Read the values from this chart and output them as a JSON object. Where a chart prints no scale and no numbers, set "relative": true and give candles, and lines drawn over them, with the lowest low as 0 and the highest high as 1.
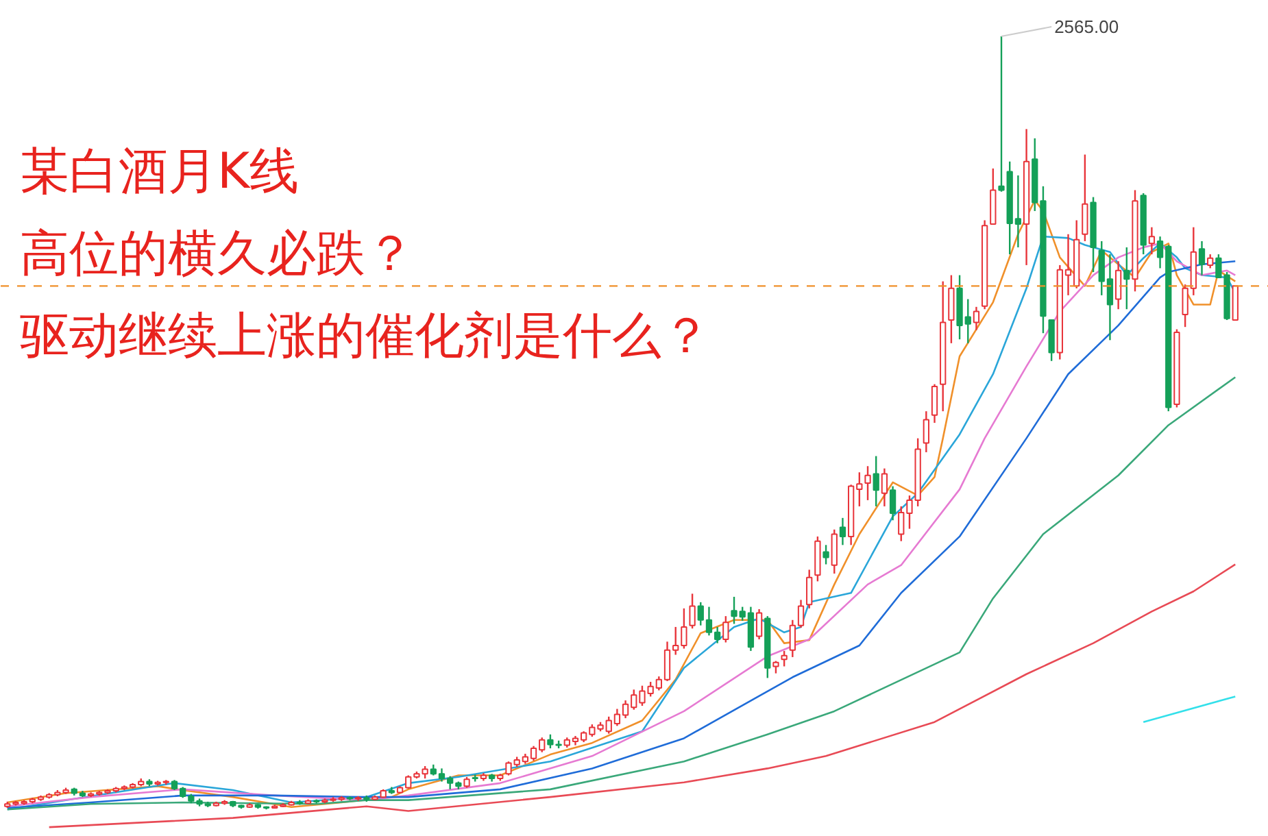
{
  "chart_data": {
    "type": "candlestick",
    "title": "某白酒月K线",
    "subtitle": "高位的横久必跌？驱动继续上涨的催化剂是什么？",
    "relative": true,
    "tick_labels": false,
    "grid": false,
    "colors": [
      "#e8343a",
      "#e8343a",
      "#e8343a",
      "#e8343a",
      "#e8343a",
      "#e8343a",
      "#e8343a",
      "#e8343a",
      "#14a058",
      "#14a058",
      "#e8343a",
      "#e8343a",
      "#e8343a",
      "#e8343a",
      "#e8343a",
      "#e8343a",
      "#e8343a",
      "#14a058",
      "#e8343a",
      "#e8343a",
      "#14a058",
      "#14a058",
      "#14a058",
      "#14a058",
      "#14a058",
      "#e8343a",
      "#e8343a",
      "#14a058",
      "#14a058",
      "#e8343a",
      "#14a058",
      "#14a058",
      "#e8343a",
      "#e8343a",
      "#e8343a",
      "#14a058",
      "#e8343a",
      "#14a058",
      "#e8343a",
      "#e8343a",
      "#e8343a",
      "#14a058",
      "#e8343a",
      "#14a058",
      "#e8343a",
      "#e8343a",
      "#14a058",
      "#e8343a",
      "#e8343a",
      "#e8343a",
      "#e8343a",
      "#14a058",
      "#14a058",
      "#14a058",
      "#14a058",
      "#e8343a",
      "#14a058",
      "#e8343a",
      "#14a058",
      "#e8343a",
      "#e8343a",
      "#e8343a",
      "#e8343a",
      "#e8343a",
      "#e8343a",
      "#14a058",
      "#14a058",
      "#e8343a",
      "#e8343a",
      "#e8343a",
      "#e8343a",
      "#e8343a",
      "#e8343a",
      "#e8343a",
      "#e8343a",
      "#e8343a",
      "#e8343a",
      "#e8343a",
      "#e8343a",
      "#e8343a",
      "#e8343a",
      "#e8343a",
      "#e8343a",
      "#14a058",
      "#14a058",
      "#14a058",
      "#e8343a",
      "#14a058",
      "#14a058",
      "#14a058",
      "#e8343a",
      "#14a058",
      "#e8343a",
      "#e8343a",
      "#e8343a",
      "#e8343a",
      "#e8343a",
      "#e8343a",
      "#14a058",
      "#e8343a",
      "#14a058",
      "#e8343a",
      "#e8343a",
      "#e8343a",
      "#14a058",
      "#e8343a",
      "#14a058",
      "#e8343a",
      "#e8343a",
      "#e8343a",
      "#e8343a",
      "#e8343a",
      "#e8343a",
      "#e8343a",
      "#14a058",
      "#14a058",
      "#e8343a",
      "#e8343a",
      "#e8343a",
      "#14a058",
      "#14a058",
      "#14a058",
      "#e8343a",
      "#14a058",
      "#14a058",
      "#14a058",
      "#e8343a",
      "#e8343a",
      "#e8343a",
      "#e8343a",
      "#14a058",
      "#14a058",
      "#14a058",
      "#e8343a",
      "#14a058",
      "#e8343a",
      "#14a058",
      "#e8343a",
      "#14a058",
      "#14a058",
      "#e8343a",
      "#e8343a",
      "#e8343a",
      "#14a058",
      "#e8343a",
      "#14a058",
      "#14a058",
      "#e8343a"
    ],
    "categories": [
      null,
      null,
      null,
      null,
      null,
      null,
      null,
      null,
      null,
      null,
      null,
      null,
      null,
      null,
      null,
      null,
      null,
      null,
      null,
      null,
      null,
      null,
      null,
      null,
      null,
      null,
      null,
      null,
      null,
      null,
      null,
      null,
      null,
      null,
      null,
      null,
      null,
      null,
      null,
      null,
      null,
      null,
      null,
      null,
      null,
      null,
      null,
      null,
      null,
      null,
      null,
      null,
      null,
      null,
      null,
      null,
      null,
      null,
      null,
      null,
      null,
      null,
      null,
      null,
      null,
      null,
      null,
      null,
      null,
      null,
      null,
      null,
      null,
      null,
      null,
      null,
      null,
      null,
      null,
      null,
      null,
      null,
      null,
      null,
      null,
      null,
      null,
      null,
      null,
      null,
      null,
      null,
      null,
      null,
      null,
      null,
      null,
      null,
      null,
      null,
      null,
      null,
      null,
      null,
      null,
      null,
      null,
      null,
      null,
      null,
      null,
      null,
      null,
      null,
      null,
      null,
      null,
      null,
      null,
      null,
      null,
      null,
      null,
      null,
      null,
      null,
      null,
      null,
      null,
      null,
      null,
      null,
      null,
      null,
      null,
      null,
      null,
      null,
      null,
      null,
      null,
      null,
      null,
      null,
      null,
      null,
      null,
      null
    ],
    "ohlc": [
      [
        0.004,
        0.01,
        0.002,
        0.007
      ],
      [
        0.007,
        0.011,
        0.005,
        0.009
      ],
      [
        0.008,
        0.012,
        0.006,
        0.01
      ],
      [
        0.01,
        0.015,
        0.008,
        0.013
      ],
      [
        0.013,
        0.018,
        0.011,
        0.016
      ],
      [
        0.016,
        0.021,
        0.014,
        0.019
      ],
      [
        0.019,
        0.025,
        0.017,
        0.022
      ],
      [
        0.022,
        0.028,
        0.02,
        0.025
      ],
      [
        0.026,
        0.028,
        0.018,
        0.021
      ],
      [
        0.021,
        0.024,
        0.016,
        0.018
      ],
      [
        0.018,
        0.022,
        0.016,
        0.02
      ],
      [
        0.02,
        0.024,
        0.018,
        0.022
      ],
      [
        0.022,
        0.026,
        0.02,
        0.024
      ],
      [
        0.024,
        0.029,
        0.022,
        0.027
      ],
      [
        0.027,
        0.031,
        0.025,
        0.029
      ],
      [
        0.029,
        0.034,
        0.027,
        0.032
      ],
      [
        0.032,
        0.04,
        0.03,
        0.036
      ],
      [
        0.036,
        0.039,
        0.03,
        0.033
      ],
      [
        0.033,
        0.037,
        0.031,
        0.035
      ],
      [
        0.035,
        0.038,
        0.032,
        0.036
      ],
      [
        0.036,
        0.038,
        0.025,
        0.027
      ],
      [
        0.027,
        0.029,
        0.015,
        0.017
      ],
      [
        0.017,
        0.02,
        0.008,
        0.011
      ],
      [
        0.011,
        0.014,
        0.004,
        0.007
      ],
      [
        0.007,
        0.01,
        0.003,
        0.005
      ],
      [
        0.005,
        0.01,
        0.004,
        0.008
      ],
      [
        0.008,
        0.012,
        0.006,
        0.01
      ],
      [
        0.01,
        0.011,
        0.003,
        0.005
      ],
      [
        0.005,
        0.006,
        0.001,
        0.003
      ],
      [
        0.003,
        0.008,
        0.002,
        0.006
      ],
      [
        0.006,
        0.007,
        0.001,
        0.003
      ],
      [
        0.003,
        0.004,
        0,
        0.002
      ],
      [
        0.002,
        0.006,
        0.001,
        0.004
      ],
      [
        0.004,
        0.008,
        0.003,
        0.006
      ],
      [
        0.006,
        0.011,
        0.005,
        0.009
      ],
      [
        0.009,
        0.012,
        0.006,
        0.008
      ],
      [
        0.008,
        0.013,
        0.007,
        0.011
      ],
      [
        0.011,
        0.013,
        0.008,
        0.01
      ],
      [
        0.01,
        0.014,
        0.008,
        0.012
      ],
      [
        0.012,
        0.016,
        0.01,
        0.013
      ],
      [
        0.013,
        0.017,
        0.011,
        0.015
      ],
      [
        0.015,
        0.017,
        0.012,
        0.014
      ],
      [
        0.014,
        0.017,
        0.011,
        0.015
      ],
      [
        0.015,
        0.018,
        0.01,
        0.013
      ],
      [
        0.013,
        0.018,
        0.012,
        0.016
      ],
      [
        0.016,
        0.026,
        0.015,
        0.024
      ],
      [
        0.024,
        0.029,
        0.02,
        0.022
      ],
      [
        0.022,
        0.03,
        0.021,
        0.028
      ],
      [
        0.028,
        0.044,
        0.027,
        0.042
      ],
      [
        0.042,
        0.049,
        0.04,
        0.046
      ],
      [
        0.046,
        0.056,
        0.04,
        0.052
      ],
      [
        0.052,
        0.058,
        0.044,
        0.046
      ],
      [
        0.046,
        0.053,
        0.036,
        0.04
      ],
      [
        0.04,
        0.043,
        0.026,
        0.034
      ],
      [
        0.034,
        0.036,
        0.026,
        0.03
      ],
      [
        0.03,
        0.042,
        0.028,
        0.039
      ],
      [
        0.041,
        0.045,
        0.036,
        0.04
      ],
      [
        0.04,
        0.047,
        0.037,
        0.044
      ],
      [
        0.044,
        0.046,
        0.036,
        0.04
      ],
      [
        0.04,
        0.046,
        0.037,
        0.044
      ],
      [
        0.046,
        0.062,
        0.044,
        0.06
      ],
      [
        0.058,
        0.068,
        0.055,
        0.064
      ],
      [
        0.062,
        0.072,
        0.059,
        0.068
      ],
      [
        0.066,
        0.082,
        0.063,
        0.079
      ],
      [
        0.077,
        0.093,
        0.074,
        0.09
      ],
      [
        0.09,
        0.097,
        0.079,
        0.084
      ],
      [
        0.084,
        0.089,
        0.079,
        0.083
      ],
      [
        0.083,
        0.093,
        0.08,
        0.09
      ],
      [
        0.088,
        0.095,
        0.083,
        0.092
      ],
      [
        0.09,
        0.101,
        0.087,
        0.099
      ],
      [
        0.097,
        0.11,
        0.094,
        0.106
      ],
      [
        0.104,
        0.113,
        0.101,
        0.109
      ],
      [
        0.101,
        0.12,
        0.098,
        0.115
      ],
      [
        0.111,
        0.13,
        0.108,
        0.123
      ],
      [
        0.122,
        0.141,
        0.118,
        0.136
      ],
      [
        0.132,
        0.155,
        0.129,
        0.148
      ],
      [
        0.138,
        0.16,
        0.134,
        0.153
      ],
      [
        0.15,
        0.165,
        0.146,
        0.159
      ],
      [
        0.157,
        0.172,
        0.154,
        0.168
      ],
      [
        0.168,
        0.217,
        0.166,
        0.206
      ],
      [
        0.206,
        0.236,
        0.2,
        0.212
      ],
      [
        0.212,
        0.26,
        0.208,
        0.236
      ],
      [
        0.238,
        0.279,
        0.234,
        0.263
      ],
      [
        0.263,
        0.268,
        0.238,
        0.245
      ],
      [
        0.245,
        0.262,
        0.225,
        0.229
      ],
      [
        0.229,
        0.236,
        0.215,
        0.22
      ],
      [
        0.22,
        0.25,
        0.216,
        0.242
      ],
      [
        0.257,
        0.275,
        0.24,
        0.25
      ],
      [
        0.256,
        0.262,
        0.244,
        0.249
      ],
      [
        0.254,
        0.262,
        0.205,
        0.21
      ],
      [
        0.224,
        0.259,
        0.22,
        0.254
      ],
      [
        0.247,
        0.25,
        0.17,
        0.183
      ],
      [
        0.185,
        0.192,
        0.176,
        0.19
      ],
      [
        0.194,
        0.205,
        0.185,
        0.199
      ],
      [
        0.206,
        0.245,
        0.197,
        0.238
      ],
      [
        0.238,
        0.271,
        0.235,
        0.263
      ],
      [
        0.265,
        0.31,
        0.26,
        0.3
      ],
      [
        0.303,
        0.353,
        0.295,
        0.347
      ],
      [
        0.333,
        0.342,
        0.317,
        0.326
      ],
      [
        0.316,
        0.362,
        0.305,
        0.356
      ],
      [
        0.365,
        0.377,
        0.342,
        0.353
      ],
      [
        0.353,
        0.42,
        0.342,
        0.418
      ],
      [
        0.414,
        0.436,
        0.392,
        0.421
      ],
      [
        0.422,
        0.444,
        0.4,
        0.432
      ],
      [
        0.434,
        0.457,
        0.392,
        0.413
      ],
      [
        0.409,
        0.441,
        0.392,
        0.434
      ],
      [
        0.413,
        0.418,
        0.374,
        0.383
      ],
      [
        0.356,
        0.392,
        0.347,
        0.384
      ],
      [
        0.383,
        0.406,
        0.363,
        0.4
      ],
      [
        0.4,
        0.48,
        0.392,
        0.466
      ],
      [
        0.474,
        0.515,
        0.462,
        0.504
      ],
      [
        0.51,
        0.55,
        0.5,
        0.547
      ],
      [
        0.55,
        0.683,
        0.515,
        0.63
      ],
      [
        0.633,
        0.691,
        0.603,
        0.674
      ],
      [
        0.674,
        0.691,
        0.608,
        0.626
      ],
      [
        0.637,
        0.66,
        0.603,
        0.628
      ],
      [
        0.63,
        0.65,
        0.62,
        0.644
      ],
      [
        0.651,
        0.762,
        0.647,
        0.755
      ],
      [
        0.757,
        0.829,
        0.757,
        0.801
      ],
      [
        0.806,
        1,
        0.799,
        0.801
      ],
      [
        0.825,
        0.838,
        0.718,
        0.758
      ],
      [
        0.764,
        0.82,
        0.727,
        0.757
      ],
      [
        0.757,
        0.88,
        0.704,
        0.838
      ],
      [
        0.841,
        0.868,
        0.774,
        0.785
      ],
      [
        0.787,
        0.806,
        0.616,
        0.638
      ],
      [
        0.633,
        0.633,
        0.58,
        0.591
      ],
      [
        0.591,
        0.704,
        0.582,
        0.698
      ],
      [
        0.691,
        0.744,
        0.665,
        0.698
      ],
      [
        0.677,
        0.762,
        0.674,
        0.737
      ],
      [
        0.744,
        0.847,
        0.735,
        0.783
      ],
      [
        0.785,
        0.792,
        0.695,
        0.727
      ],
      [
        0.723,
        0.735,
        0.665,
        0.683
      ],
      [
        0.686,
        0.718,
        0.607,
        0.653
      ],
      [
        0.66,
        0.709,
        0.647,
        0.697
      ],
      [
        0.697,
        0.727,
        0.647,
        0.686
      ],
      [
        0.686,
        0.801,
        0.67,
        0.787
      ],
      [
        0.794,
        0.797,
        0.718,
        0.73
      ],
      [
        0.732,
        0.753,
        0.718,
        0.741
      ],
      [
        0.735,
        0.741,
        0.7,
        0.714
      ],
      [
        0.728,
        0.73,
        0.515,
        0.52
      ],
      [
        0.524,
        0.621,
        0.52,
        0.617
      ],
      [
        0.64,
        0.679,
        0.624,
        0.674
      ],
      [
        0.674,
        0.753,
        0.665,
        0.721
      ],
      [
        0.725,
        0.735,
        0.691,
        0.705
      ],
      [
        0.704,
        0.718,
        0.7,
        0.713
      ],
      [
        0.713,
        0.718,
        0.688,
        0.688
      ],
      [
        0.691,
        0.695,
        0.633,
        0.635
      ],
      [
        0.633,
        0.677,
        0.633,
        0.677
      ]
    ],
    "series": [
      {
        "type": "line",
        "color": "#f0902a",
        "values": [
          0.009,
          null,
          null,
          null,
          null,
          null,
          null,
          0.021,
          null,
          null,
          null,
          null,
          null,
          null,
          null,
          null,
          null,
          null,
          0.03,
          null,
          null,
          0.025,
          null,
          null,
          null,
          null,
          null,
          0.016,
          null,
          null,
          null,
          null,
          null,
          null,
          0.003,
          null,
          null,
          null,
          null,
          null,
          0.009,
          null,
          null,
          null,
          null,
          null,
          0.016,
          null,
          0.026,
          null,
          null,
          null,
          null,
          null,
          0.044,
          null,
          null,
          null,
          null,
          0.044,
          null,
          null,
          null,
          null,
          null,
          0.071,
          null,
          null,
          null,
          null,
          0.086,
          null,
          null,
          null,
          null,
          null,
          0.115,
          null,
          null,
          null,
          0.168,
          null,
          null,
          0.228,
          null,
          null,
          null,
          0.245,
          null,
          null,
          null,
          0.245,
          null,
          0.215,
          null,
          null,
          0.219,
          null,
          null,
          0.291,
          null,
          null,
          0.356,
          null,
          null,
          null,
          0.423,
          null,
          null,
          0.406,
          null,
          0.43,
          0.48,
          null,
          0.586,
          null,
          null,
          null,
          0.656,
          null,
          null,
          0.744,
          null,
          0.788,
          0.774,
          null,
          0.714,
          null,
          null,
          0.677,
          null,
          0.723,
          null,
          0.705,
          null,
          0.688,
          null,
          0.721,
          null,
          0.732,
          0.691,
          null,
          0.653,
          null,
          0.653,
          0.697,
          null,
          0.683
        ]
      },
      {
        "type": "line",
        "color": "#2aa6d9",
        "values": [
          0.0,
          null,
          null,
          null,
          null,
          null,
          null,
          0.012,
          null,
          null,
          null,
          null,
          null,
          null,
          null,
          null,
          null,
          null,
          null,
          null,
          0.034,
          null,
          null,
          null,
          null,
          null,
          null,
          0.025,
          null,
          null,
          null,
          null,
          null,
          null,
          0.009,
          null,
          null,
          null,
          null,
          null,
          null,
          null,
          null,
          0.016,
          null,
          null,
          null,
          null,
          0.034,
          null,
          null,
          null,
          null,
          null,
          0.042,
          null,
          null,
          null,
          null,
          null,
          null,
          null,
          null,
          null,
          null,
          0.062,
          null,
          null,
          null,
          null,
          null,
          null,
          null,
          null,
          null,
          null,
          0.101,
          null,
          null,
          null,
          null,
          0.183,
          null,
          null,
          null,
          null,
          null,
          0.236,
          null,
          null,
          0.247,
          null,
          null,
          0.229,
          null,
          0.236,
          0.268,
          null,
          null,
          null,
          null,
          0.28,
          null,
          null,
          null,
          null,
          0.379,
          null,
          null,
          0.409,
          null,
          null,
          null,
          null,
          0.485,
          null,
          null,
          null,
          0.563,
          null,
          null,
          null,
          0.674,
          null,
          0.741,
          null,
          null,
          0.739,
          null,
          0.73,
          null,
          null,
          0.721,
          null,
          0.691,
          null,
          0.713,
          null,
          0.732,
          null,
          0.714,
          0.7,
          null,
          0.691,
          null,
          null,
          0.688,
          0.668
        ]
      },
      {
        "type": "line",
        "color": "#e67ad2",
        "values": [
          0.004,
          null,
          null,
          null,
          null,
          null,
          null,
          null,
          null,
          null,
          0.016,
          null,
          null,
          null,
          null,
          null,
          null,
          null,
          null,
          null,
          null,
          0.026,
          null,
          null,
          null,
          null,
          null,
          null,
          null,
          null,
          null,
          null,
          0.018,
          null,
          null,
          null,
          null,
          null,
          null,
          null,
          null,
          null,
          null,
          0.012,
          null,
          null,
          null,
          null,
          0.018,
          null,
          null,
          null,
          null,
          null,
          null,
          null,
          null,
          null,
          null,
          0.034,
          null,
          null,
          null,
          null,
          null,
          null,
          null,
          null,
          null,
          null,
          0.069,
          null,
          null,
          null,
          null,
          null,
          null,
          null,
          null,
          null,
          null,
          0.127,
          null,
          null,
          null,
          null,
          null,
          null,
          null,
          null,
          null,
          0.198,
          null,
          null,
          null,
          null,
          0.22,
          null,
          null,
          null,
          null,
          null,
          null,
          0.291,
          null,
          null,
          null,
          0.316,
          null,
          null,
          null,
          null,
          null,
          null,
          0.414,
          null,
          null,
          0.48,
          null,
          null,
          null,
          null,
          0.573,
          null,
          null,
          null,
          0.644,
          null,
          null,
          null,
          0.691,
          null,
          null,
          0.714,
          null,
          null,
          0.727,
          null,
          0.732,
          null,
          0.709,
          null,
          null,
          0.691,
          null,
          null,
          0.697,
          0.691
        ]
      },
      {
        "type": "line",
        "color": "#1f6cd8",
        "values": [
          0.002,
          null,
          null,
          null,
          null,
          null,
          null,
          null,
          null,
          null,
          0.009,
          null,
          null,
          null,
          null,
          null,
          null,
          null,
          null,
          null,
          null,
          0.018,
          null,
          null,
          null,
          null,
          null,
          null,
          null,
          null,
          null,
          null,
          0.018,
          null,
          null,
          null,
          null,
          null,
          null,
          null,
          null,
          null,
          null,
          0.016,
          null,
          null,
          null,
          null,
          0.016,
          null,
          null,
          null,
          null,
          null,
          null,
          null,
          null,
          null,
          null,
          0.026,
          null,
          null,
          null,
          null,
          null,
          null,
          null,
          null,
          null,
          null,
          0.053,
          null,
          null,
          null,
          null,
          null,
          null,
          null,
          null,
          null,
          null,
          0.092,
          null,
          null,
          null,
          null,
          null,
          null,
          null,
          null,
          null,
          null,
          null,
          null,
          0.171,
          null,
          null,
          null,
          null,
          null,
          null,
          null,
          0.212,
          null,
          null,
          null,
          null,
          0.28,
          null,
          null,
          null,
          null,
          null,
          null,
          0.353,
          null,
          null,
          null,
          null,
          null,
          null,
          null,
          0.48,
          null,
          null,
          null,
          null,
          0.563,
          null,
          null,
          null,
          null,
          null,
          0.626,
          null,
          null,
          null,
          null,
          0.688,
          0.695,
          null,
          null,
          null,
          0.705,
          null,
          null,
          null,
          0.709
        ]
      },
      {
        "type": "line",
        "color": "#3aa87a",
        "values": [
          0.0,
          null,
          null,
          null,
          null,
          null,
          null,
          null,
          null,
          null,
          0.007,
          null,
          null,
          null,
          null,
          null,
          null,
          null,
          null,
          null,
          null,
          0.009,
          null,
          null,
          null,
          null,
          null,
          null,
          null,
          null,
          null,
          null,
          null,
          null,
          null,
          null,
          null,
          0.007,
          null,
          null,
          null,
          null,
          null,
          0.012,
          null,
          null,
          null,
          null,
          0.012,
          null,
          null,
          null,
          null,
          null,
          null,
          null,
          null,
          null,
          null,
          null,
          null,
          null,
          null,
          null,
          null,
          0.026,
          null,
          null,
          null,
          null,
          null,
          null,
          null,
          null,
          null,
          null,
          null,
          null,
          null,
          null,
          null,
          0.062,
          null,
          null,
          null,
          null,
          null,
          null,
          null,
          null,
          null,
          0.097,
          null,
          null,
          null,
          null,
          null,
          null,
          null,
          0.127,
          null,
          null,
          null,
          null,
          null,
          null,
          null,
          null,
          null,
          null,
          null,
          null,
          null,
          null,
          0.203,
          null,
          null,
          null,
          0.273,
          null,
          null,
          null,
          null,
          null,
          0.356,
          null,
          null,
          null,
          null,
          null,
          null,
          null,
          null,
          0.432,
          null,
          null,
          null,
          null,
          null,
          0.497,
          null,
          null,
          null,
          null,
          null,
          null,
          null,
          0.559
        ]
      },
      {
        "type": "line",
        "color": "#e84a55",
        "values": [
          null,
          null,
          null,
          null,
          null,
          -0.023,
          null,
          null,
          null,
          null,
          null,
          null,
          null,
          null,
          null,
          null,
          null,
          null,
          null,
          null,
          null,
          null,
          null,
          null,
          null,
          null,
          null,
          -0.011,
          null,
          null,
          null,
          null,
          null,
          null,
          null,
          null,
          null,
          null,
          null,
          null,
          null,
          null,
          null,
          0.004,
          null,
          null,
          null,
          null,
          -0.002,
          null,
          null,
          null,
          null,
          null,
          null,
          null,
          null,
          null,
          null,
          null,
          null,
          null,
          null,
          null,
          null,
          0.016,
          null,
          null,
          null,
          null,
          null,
          null,
          null,
          null,
          null,
          null,
          null,
          null,
          null,
          null,
          null,
          0.035,
          null,
          null,
          null,
          null,
          null,
          null,
          null,
          null,
          null,
          0.053,
          null,
          null,
          null,
          null,
          null,
          null,
          0.069,
          null,
          null,
          null,
          null,
          null,
          null,
          null,
          null,
          null,
          null,
          null,
          null,
          0.113,
          null,
          null,
          null,
          null,
          null,
          null,
          null,
          null,
          null,
          null,
          0.175,
          null,
          null,
          null,
          null,
          null,
          null,
          null,
          0.215,
          null,
          null,
          null,
          null,
          null,
          null,
          0.256,
          null,
          null,
          null,
          null,
          0.282,
          null,
          null,
          null,
          null,
          0.317
        ]
      },
      {
        "type": "line",
        "color": "#33e0ea",
        "values": [
          null,
          null,
          null,
          null,
          null,
          null,
          null,
          null,
          null,
          null,
          null,
          null,
          null,
          null,
          null,
          null,
          null,
          null,
          null,
          null,
          null,
          null,
          null,
          null,
          null,
          null,
          null,
          null,
          null,
          null,
          null,
          null,
          null,
          null,
          null,
          null,
          null,
          null,
          null,
          null,
          null,
          null,
          null,
          null,
          null,
          null,
          null,
          null,
          null,
          null,
          null,
          null,
          null,
          null,
          null,
          null,
          null,
          null,
          null,
          null,
          null,
          null,
          null,
          null,
          null,
          null,
          null,
          null,
          null,
          null,
          null,
          null,
          null,
          null,
          null,
          null,
          null,
          null,
          null,
          null,
          null,
          null,
          null,
          null,
          null,
          null,
          null,
          null,
          null,
          null,
          null,
          null,
          null,
          null,
          null,
          null,
          null,
          null,
          null,
          null,
          null,
          null,
          null,
          null,
          null,
          null,
          null,
          null,
          null,
          null,
          null,
          null,
          null,
          null,
          null,
          null,
          null,
          null,
          null,
          null,
          null,
          null,
          null,
          null,
          null,
          null,
          null,
          null,
          null,
          null,
          null,
          null,
          null,
          null,
          null,
          null,
          0.113,
          null,
          null,
          null,
          null,
          null,
          null,
          null,
          null,
          null,
          null,
          0.146
        ]
      }
    ],
    "ref_lines": [
      {
        "axis": "y",
        "value": 0.677,
        "color": "#f0902a",
        "line_style": "dashed"
      }
    ],
    "annotations": [
      "2565.00"
    ]
  }
}
